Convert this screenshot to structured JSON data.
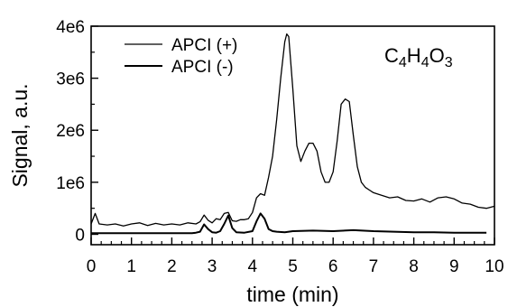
{
  "chart_data": {
    "type": "line",
    "title": "",
    "annotation": {
      "text": "C4H4O3",
      "base": "C",
      "parts": [
        {
          "t": "C",
          "sub": false
        },
        {
          "t": "4",
          "sub": true
        },
        {
          "t": "H",
          "sub": false
        },
        {
          "t": "4",
          "sub": true
        },
        {
          "t": "O",
          "sub": false
        },
        {
          "t": "3",
          "sub": true
        }
      ]
    },
    "xlabel": "time (min)",
    "ylabel": "Signal, a.u.",
    "xlim": [
      0,
      10
    ],
    "ylim": [
      -200000,
      4000000
    ],
    "x_ticks": [
      0,
      1,
      2,
      3,
      4,
      5,
      6,
      7,
      8,
      9,
      10
    ],
    "x_tick_labels": [
      "0",
      "1",
      "2",
      "3",
      "4",
      "5",
      "6",
      "7",
      "8",
      "9",
      "10"
    ],
    "y_ticks": [
      0,
      1000000,
      2000000,
      3000000,
      4000000
    ],
    "y_tick_labels": [
      "0",
      "1e6",
      "2e6",
      "3e6",
      "4e6"
    ],
    "grid": false,
    "legend_position": "top-left",
    "series": [
      {
        "name": "APCI (+)",
        "color": "#000000",
        "x": [
          0.0,
          0.1,
          0.2,
          0.4,
          0.6,
          0.8,
          1.0,
          1.2,
          1.4,
          1.6,
          1.8,
          2.0,
          2.2,
          2.4,
          2.6,
          2.7,
          2.8,
          2.9,
          3.0,
          3.1,
          3.2,
          3.3,
          3.4,
          3.5,
          3.6,
          3.7,
          3.8,
          3.9,
          4.0,
          4.1,
          4.2,
          4.3,
          4.4,
          4.5,
          4.6,
          4.7,
          4.8,
          4.85,
          4.9,
          5.0,
          5.1,
          5.2,
          5.3,
          5.4,
          5.5,
          5.6,
          5.7,
          5.8,
          5.9,
          6.0,
          6.1,
          6.2,
          6.3,
          6.4,
          6.5,
          6.6,
          6.7,
          6.8,
          6.9,
          7.0,
          7.2,
          7.4,
          7.6,
          7.8,
          8.0,
          8.2,
          8.4,
          8.6,
          8.8,
          9.0,
          9.2,
          9.4,
          9.6,
          9.8,
          10.0
        ],
        "y": [
          200000,
          400000,
          200000,
          180000,
          200000,
          160000,
          200000,
          220000,
          170000,
          210000,
          180000,
          200000,
          180000,
          220000,
          200000,
          240000,
          370000,
          270000,
          220000,
          300000,
          280000,
          400000,
          420000,
          260000,
          250000,
          280000,
          280000,
          300000,
          420000,
          700000,
          780000,
          750000,
          1100000,
          1500000,
          2200000,
          3000000,
          3700000,
          3850000,
          3800000,
          2800000,
          1700000,
          1400000,
          1600000,
          1750000,
          1750000,
          1600000,
          1200000,
          1000000,
          1000000,
          1200000,
          1800000,
          2500000,
          2600000,
          2550000,
          1900000,
          1300000,
          1000000,
          900000,
          850000,
          800000,
          750000,
          700000,
          720000,
          650000,
          640000,
          680000,
          620000,
          700000,
          720000,
          680000,
          600000,
          580000,
          520000,
          500000,
          540000
        ]
      },
      {
        "name": "APCI (-)",
        "color": "#000000",
        "x": [
          0.0,
          0.5,
          1.0,
          1.5,
          2.0,
          2.5,
          2.6,
          2.7,
          2.8,
          2.9,
          3.0,
          3.1,
          3.2,
          3.3,
          3.4,
          3.5,
          3.6,
          3.8,
          4.0,
          4.1,
          4.2,
          4.3,
          4.4,
          4.5,
          4.6,
          4.8,
          5.0,
          5.5,
          6.0,
          6.5,
          7.0,
          7.5,
          8.0,
          8.5,
          9.0,
          9.5,
          9.8
        ],
        "y": [
          20000,
          20000,
          20000,
          20000,
          20000,
          20000,
          30000,
          50000,
          190000,
          100000,
          40000,
          30000,
          60000,
          200000,
          360000,
          120000,
          40000,
          30000,
          60000,
          250000,
          400000,
          300000,
          100000,
          60000,
          50000,
          40000,
          60000,
          70000,
          60000,
          80000,
          60000,
          50000,
          40000,
          40000,
          30000,
          30000,
          30000
        ]
      }
    ]
  }
}
